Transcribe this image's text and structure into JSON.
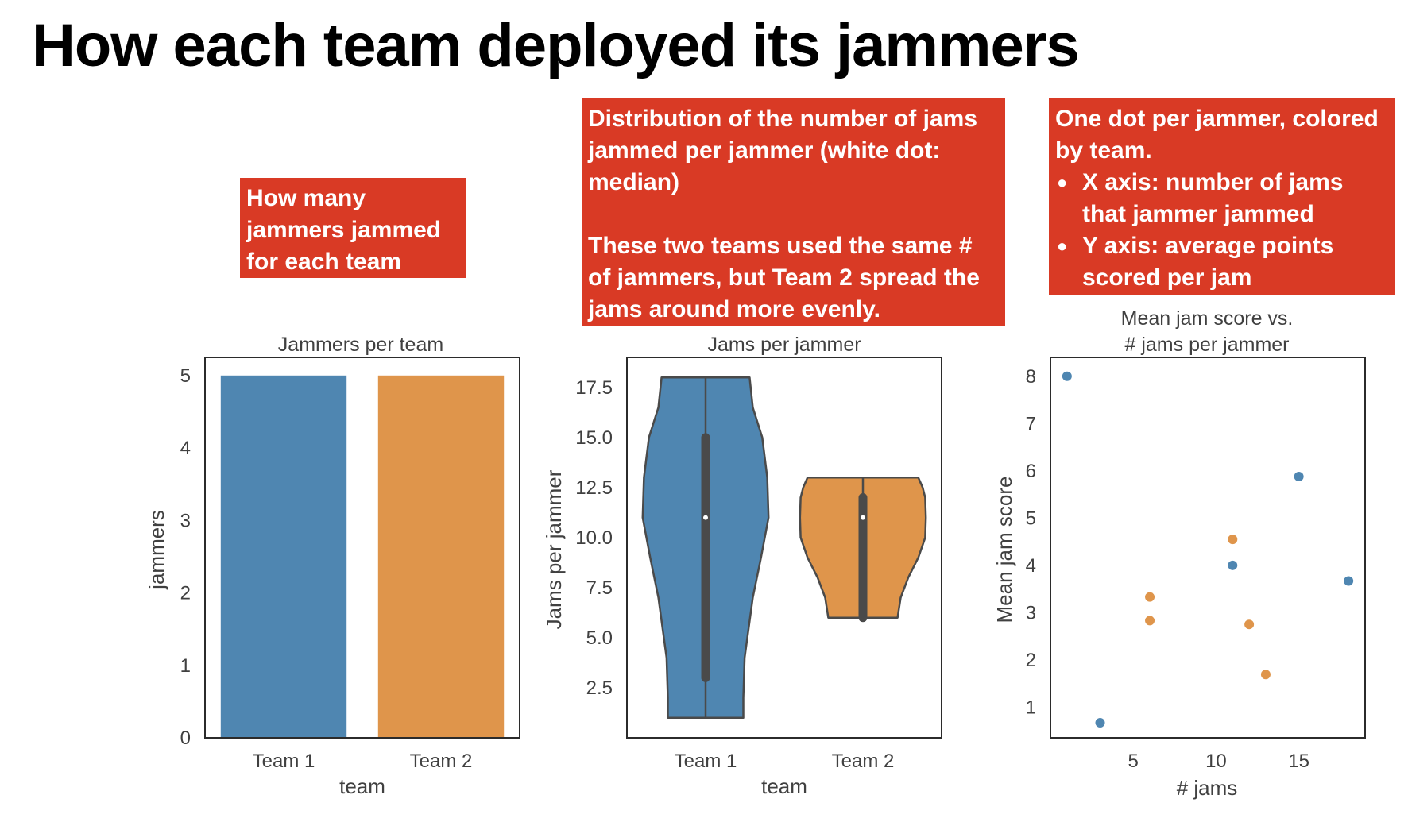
{
  "page": {
    "title": "How each team deployed its jammers"
  },
  "callouts": {
    "bars": "How many jammers jammed for each team",
    "violin_p1": "Distribution of the number of jams jammed per jammer (white dot: median)",
    "violin_p2": "These two teams used the same # of jammers, but Team 2 spread the jams around more evenly.",
    "scatter_intro": "One dot per jammer, colored by team.",
    "scatter_bullets": [
      "X axis: number of jams that jammer jammed",
      "Y axis: average points scored per jam"
    ]
  },
  "colors": {
    "team1": "#4f86b1",
    "team2": "#df954b",
    "callout_bg": "#d93a25"
  },
  "chart_data": [
    {
      "type": "bar",
      "title": "Jammers per team",
      "xlabel": "team",
      "ylabel": "jammers",
      "categories": [
        "Team 1",
        "Team 2"
      ],
      "values": [
        5,
        5
      ],
      "ylim": [
        0,
        5.25
      ],
      "yticks": [
        0,
        1,
        2,
        3,
        4,
        5
      ],
      "grid": false
    },
    {
      "type": "violin",
      "title": "Jams per jammer",
      "xlabel": "team",
      "ylabel": "Jams per jammer",
      "categories": [
        "Team 1",
        "Team 2"
      ],
      "ylim": [
        0,
        19
      ],
      "yticks": [
        "2.5",
        "5.0",
        "7.5",
        "10.0",
        "12.5",
        "15.0",
        "17.5"
      ],
      "grid": false,
      "series": [
        {
          "min": 1,
          "q1": 3,
          "median": 11,
          "q3": 15,
          "max": 18,
          "profile": [
            [
              1,
              0.6
            ],
            [
              2,
              0.6
            ],
            [
              4,
              0.62
            ],
            [
              7,
              0.75
            ],
            [
              9,
              0.88
            ],
            [
              11,
              1.0
            ],
            [
              13,
              0.98
            ],
            [
              15,
              0.9
            ],
            [
              16.5,
              0.75
            ],
            [
              18,
              0.7
            ]
          ]
        },
        {
          "min": 6,
          "q1": 6,
          "median": 11,
          "q3": 12,
          "max": 13,
          "profile": [
            [
              6,
              0.55
            ],
            [
              7,
              0.6
            ],
            [
              8,
              0.72
            ],
            [
              9,
              0.88
            ],
            [
              10,
              0.99
            ],
            [
              11,
              1.0
            ],
            [
              12,
              0.99
            ],
            [
              12.5,
              0.95
            ],
            [
              13,
              0.88
            ]
          ]
        }
      ]
    },
    {
      "type": "scatter",
      "title": "Mean jam score vs.\n# jams per jammer",
      "xlabel": "# jams",
      "ylabel": "Mean jam score",
      "xlim": [
        0,
        19
      ],
      "ylim": [
        0.35,
        8.4
      ],
      "xticks": [
        5,
        10,
        15
      ],
      "yticks": [
        1,
        2,
        3,
        4,
        5,
        6,
        7,
        8
      ],
      "grid": false,
      "series": [
        {
          "name": "Team 1",
          "points": [
            [
              1,
              8
            ],
            [
              3,
              0.67
            ],
            [
              11,
              4.0
            ],
            [
              15,
              5.88
            ],
            [
              18,
              3.67
            ]
          ]
        },
        {
          "name": "Team 2",
          "points": [
            [
              6,
              3.33
            ],
            [
              6,
              2.83
            ],
            [
              11,
              4.55
            ],
            [
              12,
              2.75
            ],
            [
              13,
              1.69
            ]
          ]
        }
      ]
    }
  ]
}
